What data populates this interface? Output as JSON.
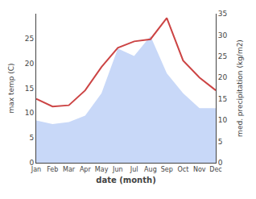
{
  "chart_data": {
    "type": "combo",
    "xlabel": "date (month)",
    "ylabel": "max temp (C)",
    "y2label": "med. precipitation (kg/m2)",
    "categories": [
      "Jan",
      "Feb",
      "Mar",
      "Apr",
      "May",
      "Jun",
      "Jul",
      "Aug",
      "Sep",
      "Oct",
      "Nov",
      "Dec"
    ],
    "series": [
      {
        "type": "area",
        "color": "#c8d8f8",
        "values": [
          8.5,
          7.8,
          8.2,
          9.5,
          14.0,
          23.0,
          21.5,
          25.5,
          18.0,
          14.0,
          11.0,
          11.0
        ]
      },
      {
        "type": "line",
        "color": "#cc4444",
        "axis": "y2",
        "values": [
          15.0,
          13.2,
          13.5,
          17.0,
          22.5,
          27.0,
          28.5,
          29.0,
          34.0,
          24.0,
          20.0,
          17.0
        ]
      }
    ],
    "ylim": [
      0,
      30
    ],
    "yticks": [
      0,
      5,
      10,
      15,
      20,
      25
    ],
    "y2lim": [
      0,
      35
    ],
    "y2ticks": [
      0,
      5,
      10,
      15,
      20,
      25,
      30,
      35
    ],
    "grid": false
  }
}
